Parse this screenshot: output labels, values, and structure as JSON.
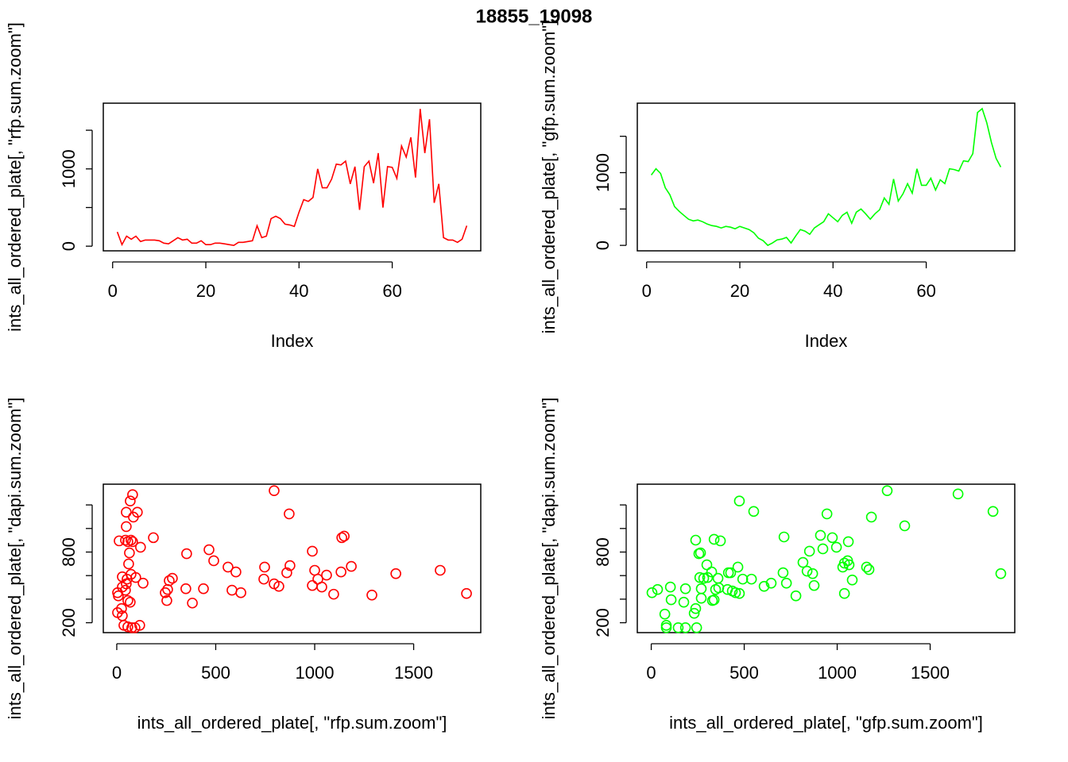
{
  "title": "18855_19098",
  "chart_data": [
    {
      "type": "line",
      "xlabel": "Index",
      "ylabel": "ints_all_ordered_plate[, \"rfp.sum.zoom\"]",
      "color": "#ff0000",
      "x": [
        1,
        2,
        3,
        4,
        5,
        6,
        7,
        8,
        9,
        10,
        11,
        12,
        13,
        14,
        15,
        16,
        17,
        18,
        19,
        20,
        21,
        22,
        23,
        24,
        25,
        26,
        27,
        28,
        29,
        30,
        31,
        32,
        33,
        34,
        35,
        36,
        37,
        38,
        39,
        40,
        41,
        42,
        43,
        44,
        45,
        46,
        47,
        48,
        49,
        50,
        51,
        52,
        53,
        54,
        55,
        56,
        57,
        58,
        59,
        60,
        61,
        62,
        63,
        64,
        65,
        66,
        67,
        68,
        69,
        70,
        71,
        72,
        73,
        74,
        75,
        76
      ],
      "values": [
        184,
        20,
        130,
        90,
        130,
        60,
        80,
        80,
        80,
        70,
        40,
        30,
        70,
        110,
        80,
        90,
        40,
        40,
        70,
        20,
        20,
        40,
        40,
        30,
        20,
        10,
        50,
        50,
        60,
        70,
        265,
        110,
        130,
        357,
        388,
        357,
        285,
        275,
        255,
        440,
        602,
        580,
        630,
        1000,
        755,
        755,
        867,
        1061,
        1051,
        1100,
        806,
        1030,
        470,
        1030,
        1100,
        816,
        1204,
        500,
        1030,
        1020,
        877,
        1296,
        1153,
        1408,
        888,
        1776,
        1204,
        1643,
        561,
        806,
        110,
        80,
        80,
        50,
        90,
        265
      ],
      "xlim": [
        -2,
        79
      ],
      "xticks": [
        0,
        20,
        40,
        60
      ],
      "ylim": [
        -60,
        1850
      ],
      "yticks": [
        0,
        1000
      ],
      "yminor": [
        500,
        1500
      ]
    },
    {
      "type": "line",
      "xlabel": "Index",
      "ylabel": "ints_all_ordered_plate[, \"gfp.sum.zoom\"]",
      "color": "#00ff00",
      "x": [
        1,
        2,
        3,
        4,
        5,
        6,
        7,
        8,
        9,
        10,
        11,
        12,
        13,
        14,
        15,
        16,
        17,
        18,
        19,
        20,
        21,
        22,
        23,
        24,
        25,
        26,
        27,
        28,
        29,
        30,
        31,
        32,
        33,
        34,
        35,
        36,
        37,
        38,
        39,
        40,
        41,
        42,
        43,
        44,
        45,
        46,
        47,
        48,
        49,
        50,
        51,
        52,
        53,
        54,
        55,
        56,
        57,
        58,
        59,
        60,
        61,
        62,
        63,
        64,
        65,
        66,
        67,
        68,
        69,
        70,
        71,
        72,
        73,
        74,
        75,
        76
      ],
      "values": [
        967,
        1054,
        989,
        793,
        696,
        533,
        467,
        413,
        359,
        337,
        348,
        326,
        293,
        272,
        261,
        239,
        261,
        250,
        228,
        261,
        239,
        217,
        174,
        98,
        65,
        0,
        33,
        76,
        87,
        109,
        33,
        130,
        217,
        196,
        152,
        239,
        283,
        326,
        435,
        380,
        326,
        413,
        457,
        304,
        457,
        500,
        435,
        359,
        435,
        489,
        652,
        565,
        913,
        609,
        707,
        848,
        717,
        1054,
        826,
        826,
        924,
        761,
        902,
        848,
        1054,
        1043,
        1022,
        1163,
        1152,
        1261,
        1826,
        1880,
        1685,
        1413,
        1196,
        1076
      ],
      "xlim": [
        -2,
        79
      ],
      "xticks": [
        0,
        20,
        40,
        60
      ],
      "ylim": [
        -75,
        1955
      ],
      "yticks": [
        0,
        1000
      ],
      "yminor": [
        500,
        1500
      ]
    },
    {
      "type": "scatter",
      "xlabel": "ints_all_ordered_plate[, \"rfp.sum.zoom\"]",
      "ylabel": "ints_all_ordered_plate[, \"dapi.sum.zoom\"]",
      "color": "#ff0000",
      "x": [
        80,
        68,
        48,
        104,
        84,
        48,
        12,
        44,
        72,
        56,
        80,
        185,
        120,
        64,
        60,
        28,
        52,
        72,
        96,
        48,
        28,
        44,
        4,
        8,
        56,
        68,
        133,
        24,
        4,
        28,
        36,
        56,
        76,
        92,
        116,
        245,
        257,
        265,
        281,
        253,
        353,
        349,
        382,
        438,
        466,
        490,
        562,
        582,
        602,
        627,
        747,
        743,
        795,
        819,
        795,
        871,
        859,
        875,
        988,
        988,
        1000,
        1016,
        1036,
        1060,
        1096,
        1133,
        1137,
        1149,
        1185,
        1289,
        1410,
        1634,
        1767
      ],
      "values": [
        1287,
        1233,
        1138,
        1138,
        1097,
        1016,
        895,
        901,
        901,
        888,
        888,
        922,
        841,
        793,
        699,
        590,
        570,
        611,
        584,
        530,
        503,
        476,
        455,
        428,
        388,
        374,
        536,
        320,
        286,
        259,
        178,
        165,
        158,
        158,
        178,
        455,
        482,
        557,
        577,
        388,
        786,
        489,
        367,
        489,
        820,
        726,
        672,
        476,
        631,
        455,
        672,
        570,
        530,
        509,
        1321,
        1124,
        624,
        685,
        807,
        516,
        645,
        570,
        503,
        604,
        442,
        631,
        922,
        935,
        678,
        435,
        617,
        645,
        448
      ],
      "xlim": [
        -68,
        1839
      ],
      "xticks": [
        0,
        500,
        1000,
        1500
      ],
      "ylim": [
        116,
        1376
      ],
      "yticks": [
        200,
        800
      ],
      "yminor": [
        400,
        600,
        1000,
        1200
      ]
    },
    {
      "type": "scatter",
      "xlabel": "ints_all_ordered_plate[, \"gfp.sum.zoom\"]",
      "ylabel": "ints_all_ordered_plate[, \"dapi.sum.zoom\"]",
      "color": "#00ff00",
      "x": [
        4,
        34,
        103,
        184,
        107,
        73,
        81,
        81,
        145,
        184,
        244,
        231,
        239,
        175,
        269,
        269,
        261,
        282,
        303,
        299,
        325,
        239,
        256,
        265,
        338,
        372,
        359,
        346,
        329,
        338,
        363,
        410,
        415,
        427,
        436,
        453,
        474,
        466,
        492,
        474,
        551,
        539,
        607,
        645,
        709,
        714,
        727,
        778,
        816,
        838,
        851,
        868,
        876,
        910,
        923,
        945,
        974,
        996,
        1030,
        1039,
        1060,
        1056,
        1064,
        1081,
        1039,
        1158,
        1171,
        1184,
        1269,
        1363,
        1650,
        1838,
        1880
      ],
      "values": [
        455,
        482,
        503,
        489,
        395,
        273,
        178,
        158,
        158,
        158,
        158,
        280,
        320,
        374,
        408,
        489,
        584,
        577,
        584,
        692,
        631,
        901,
        786,
        793,
        908,
        895,
        577,
        482,
        388,
        394,
        496,
        482,
        624,
        624,
        469,
        455,
        448,
        672,
        570,
        1233,
        1145,
        570,
        509,
        536,
        624,
        928,
        536,
        428,
        712,
        638,
        807,
        617,
        516,
        942,
        827,
        1124,
        922,
        841,
        672,
        448,
        888,
        726,
        692,
        563,
        706,
        672,
        651,
        1097,
        1321,
        1023,
        1293,
        1145,
        617
      ],
      "xlim": [
        -75,
        1955
      ],
      "xticks": [
        0,
        500,
        1000,
        1500
      ],
      "ylim": [
        116,
        1376
      ],
      "yticks": [
        200,
        800
      ],
      "yminor": [
        400,
        600,
        1000,
        1200
      ]
    }
  ]
}
